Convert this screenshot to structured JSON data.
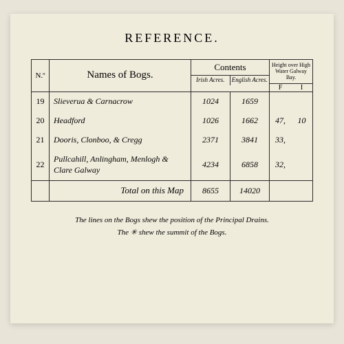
{
  "title": "REFERENCE.",
  "headers": {
    "no": "N.º",
    "names": "Names of Bogs.",
    "contents": "Contents",
    "irish": "Irish Acres.",
    "english": "English Acres.",
    "height": "Height over High Water Galway Bay.",
    "f": "F",
    "i": "I"
  },
  "rows": [
    {
      "no": "19",
      "name": "Slieverua & Carnacrow",
      "irish": "1024",
      "english": "1659",
      "f": "",
      "i": ""
    },
    {
      "no": "20",
      "name": "Headford",
      "irish": "1026",
      "english": "1662",
      "f": "47,",
      "i": "10"
    },
    {
      "no": "21",
      "name": "Dooris, Clonboo, & Cregg",
      "irish": "2371",
      "english": "3841",
      "f": "33,",
      "i": ""
    },
    {
      "no": "22",
      "name": "Pullcahill, Anlingham, Menlogh & Clare Galway",
      "irish": "4234",
      "english": "6858",
      "f": "32,",
      "i": ""
    }
  ],
  "total": {
    "label": "Total on this Map",
    "irish": "8655",
    "english": "14020"
  },
  "caption": {
    "line1": "The lines on the Bogs shew the position of the Principal Drains.",
    "line2": "The ✳ shew the summit of the Bogs."
  },
  "colors": {
    "page_bg": "#f0ecdc",
    "body_bg": "#e8e4d8",
    "border": "#2a2a2a",
    "text": "#1a1a1a"
  }
}
